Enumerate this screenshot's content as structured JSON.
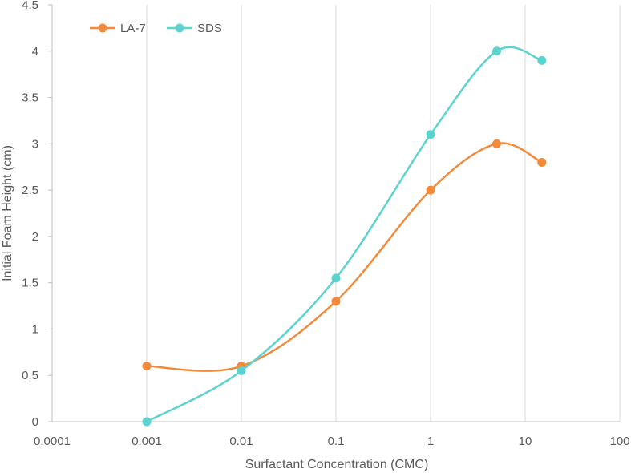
{
  "chart_data": {
    "type": "line",
    "x_scale": "log",
    "x_ticks": [
      "0.0001",
      "0.001",
      "0.01",
      "0.1",
      "1",
      "10",
      "100"
    ],
    "x_tick_values": [
      0.0001,
      0.001,
      0.01,
      0.1,
      1,
      10,
      100
    ],
    "y_ticks": [
      "0",
      "0.5",
      "1",
      "1.5",
      "2",
      "2.5",
      "3",
      "3.5",
      "4",
      "4.5"
    ],
    "xlim": [
      0.0001,
      100
    ],
    "ylim": [
      0,
      4.5
    ],
    "xlabel": "Surfactant Concentration (CMC)",
    "ylabel": "Initial Foam Height (cm)",
    "grid": "vertical",
    "legend_position": "top-left",
    "series": [
      {
        "name": "LA-7",
        "color": "#F28A3B",
        "x": [
          0.001,
          0.01,
          0.1,
          1,
          5,
          15
        ],
        "y": [
          0.6,
          0.6,
          1.3,
          2.5,
          3.0,
          2.8
        ]
      },
      {
        "name": "SDS",
        "color": "#5DD3CF",
        "x": [
          0.001,
          0.01,
          0.1,
          1,
          5,
          15
        ],
        "y": [
          0.0,
          0.55,
          1.55,
          3.1,
          4.0,
          3.9
        ]
      }
    ]
  }
}
